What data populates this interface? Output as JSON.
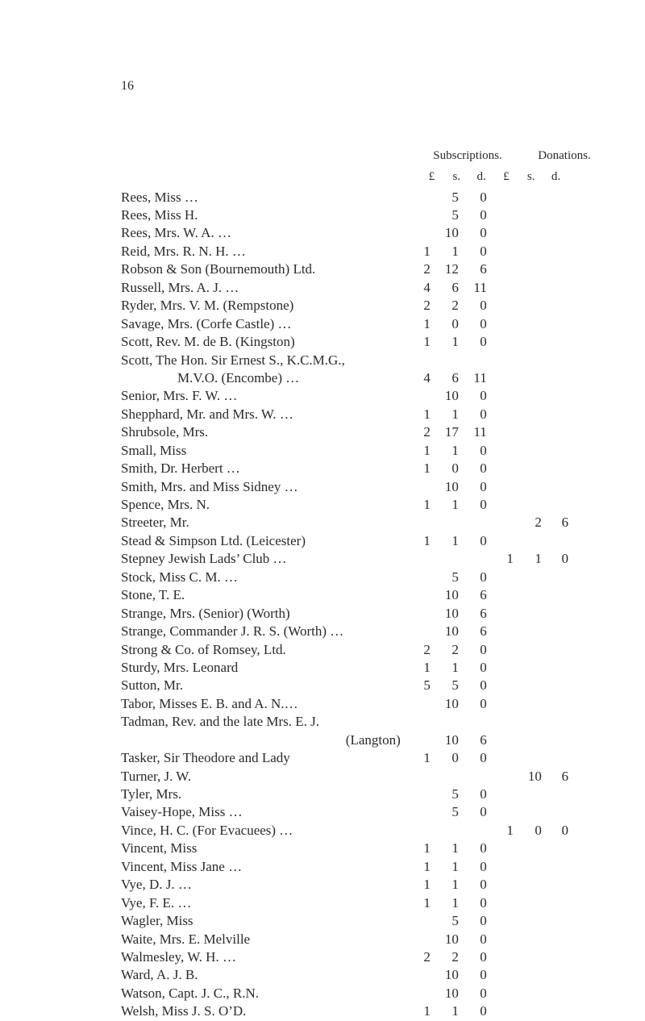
{
  "page_number": "16",
  "headers": {
    "subscriptions": "Subscriptions.",
    "donations": "Donations.",
    "units": {
      "l": "£",
      "s": "s.",
      "d": "d."
    }
  },
  "rows": [
    {
      "name": "Rees, Miss …",
      "sL": "",
      "sS": "5",
      "sD": "0"
    },
    {
      "name": "Rees, Miss H.",
      "sL": "",
      "sS": "5",
      "sD": "0"
    },
    {
      "name": "Rees, Mrs. W. A.   …",
      "sL": "",
      "sS": "10",
      "sD": "0"
    },
    {
      "name": "Reid, Mrs. R. N. H. …",
      "sL": "1",
      "sS": "1",
      "sD": "0"
    },
    {
      "name": "Robson & Son (Bournemouth) Ltd.",
      "sL": "2",
      "sS": "12",
      "sD": "6"
    },
    {
      "name": "Russell, Mrs. A. J.   …",
      "sL": "4",
      "sS": "6",
      "sD": "11"
    },
    {
      "name": "Ryder, Mrs. V. M. (Rempstone)",
      "sL": "2",
      "sS": "2",
      "sD": "0"
    },
    {
      "name": "Savage, Mrs. (Corfe Castle)   …",
      "sL": "1",
      "sS": "0",
      "sD": "0"
    },
    {
      "name": "Scott, Rev. M. de B. (Kingston)",
      "sL": "1",
      "sS": "1",
      "sD": "0"
    },
    {
      "name": "Scott, The Hon. Sir Ernest S., K.C.M.G.,",
      "noMoney": true
    },
    {
      "name": "M.V.O. (Encombe)   …",
      "indent": true,
      "sL": "4",
      "sS": "6",
      "sD": "11"
    },
    {
      "name": "Senior, Mrs. F. W.   …",
      "sL": "",
      "sS": "10",
      "sD": "0"
    },
    {
      "name": "Shepphard, Mr. and Mrs. W. …",
      "sL": "1",
      "sS": "1",
      "sD": "0"
    },
    {
      "name": "Shrubsole, Mrs.",
      "sL": "2",
      "sS": "17",
      "sD": "11"
    },
    {
      "name": "Small, Miss",
      "sL": "1",
      "sS": "1",
      "sD": "0"
    },
    {
      "name": "Smith, Dr. Herbert …",
      "sL": "1",
      "sS": "0",
      "sD": "0"
    },
    {
      "name": "Smith, Mrs. and Miss Sidney …",
      "sL": "",
      "sS": "10",
      "sD": "0"
    },
    {
      "name": "Spence, Mrs. N.",
      "sL": "1",
      "sS": "1",
      "sD": "0"
    },
    {
      "name": "Streeter, Mr.",
      "dL": "",
      "dS": "2",
      "dD": "6"
    },
    {
      "name": "Stead & Simpson Ltd. (Leicester)",
      "sL": "1",
      "sS": "1",
      "sD": "0"
    },
    {
      "name": "Stepney Jewish Lads’ Club   …",
      "dL": "1",
      "dS": "1",
      "dD": "0"
    },
    {
      "name": "Stock, Miss C. M.   …",
      "sL": "",
      "sS": "5",
      "sD": "0"
    },
    {
      "name": "Stone, T. E.",
      "sL": "",
      "sS": "10",
      "sD": "6"
    },
    {
      "name": "Strange, Mrs. (Senior)   (Worth)",
      "sL": "",
      "sS": "10",
      "sD": "6"
    },
    {
      "name": "Strange, Commander J. R. S. (Worth) …",
      "sL": "",
      "sS": "10",
      "sD": "6"
    },
    {
      "name": "Strong & Co. of Romsey, Ltd.",
      "sL": "2",
      "sS": "2",
      "sD": "0"
    },
    {
      "name": "Sturdy, Mrs. Leonard",
      "sL": "1",
      "sS": "1",
      "sD": "0"
    },
    {
      "name": "Sutton, Mr.",
      "sL": "5",
      "sS": "5",
      "sD": "0"
    },
    {
      "name": "Tabor, Misses E. B. and A. N.…",
      "sL": "",
      "sS": "10",
      "sD": "0"
    },
    {
      "name": "Tadman, Rev. and the late Mrs. E. J.",
      "noMoney": true
    },
    {
      "name": "(Langton)",
      "rightAlign": true,
      "sL": "",
      "sS": "10",
      "sD": "6"
    },
    {
      "name": "Tasker, Sir Theodore and Lady",
      "sL": "1",
      "sS": "0",
      "sD": "0"
    },
    {
      "name": "Turner, J. W.",
      "dL": "",
      "dS": "10",
      "dD": "6"
    },
    {
      "name": "Tyler, Mrs.",
      "sL": "",
      "sS": "5",
      "sD": "0"
    },
    {
      "name": "Vaisey-Hope, Miss …",
      "sL": "",
      "sS": "5",
      "sD": "0"
    },
    {
      "name": "Vince, H. C.   (For Evacuees) …",
      "dL": "1",
      "dS": "0",
      "dD": "0"
    },
    {
      "name": "Vincent, Miss",
      "sL": "1",
      "sS": "1",
      "sD": "0"
    },
    {
      "name": "Vincent, Miss Jane …",
      "sL": "1",
      "sS": "1",
      "sD": "0"
    },
    {
      "name": "Vye, D. J.   …",
      "sL": "1",
      "sS": "1",
      "sD": "0"
    },
    {
      "name": "Vye, F. E. …",
      "sL": "1",
      "sS": "1",
      "sD": "0"
    },
    {
      "name": "Wagler, Miss",
      "sL": "",
      "sS": "5",
      "sD": "0"
    },
    {
      "name": "Waite, Mrs. E. Melville",
      "sL": "",
      "sS": "10",
      "sD": "0"
    },
    {
      "name": "Walmesley, W. H.   …",
      "sL": "2",
      "sS": "2",
      "sD": "0"
    },
    {
      "name": "Ward, A. J. B.",
      "sL": "",
      "sS": "10",
      "sD": "0"
    },
    {
      "name": "Watson, Capt. J. C., R.N.",
      "sL": "",
      "sS": "10",
      "sD": "0"
    },
    {
      "name": "Welsh, Miss J. S. O’D.",
      "sL": "1",
      "sS": "1",
      "sD": "0"
    }
  ]
}
